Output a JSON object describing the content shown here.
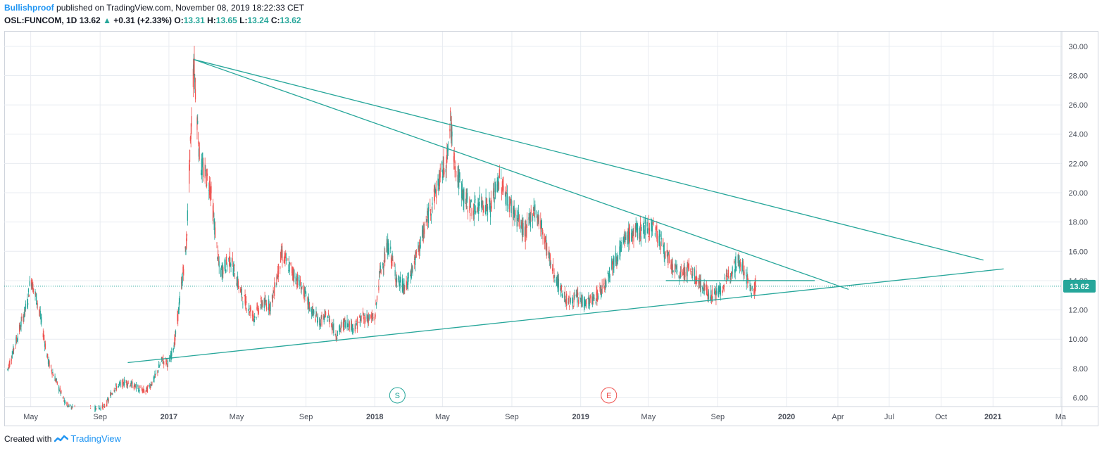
{
  "header": {
    "author": "Bullishproof",
    "published_text": "published on TradingView.com, November 08, 2019 18:22:33 CET",
    "symbol": "OSL:FUNCOM, 1D",
    "last": "13.62",
    "change_arrow": "▲",
    "change": "+0.31 (+2.33%)",
    "o_label": "O:",
    "o_value": "13.31",
    "h_label": "H:",
    "h_value": "13.65",
    "l_label": "L:",
    "l_value": "13.24",
    "c_label": "C:",
    "c_value": "13.62"
  },
  "footer": {
    "created_with": "Created with",
    "brand": "TradingView"
  },
  "colors": {
    "up": "#26a69a",
    "down": "#ef5350",
    "trendline": "#26a69a",
    "grid": "#e8ecf1",
    "price_tag": "#26a69a"
  },
  "chart_data": {
    "type": "candlestick",
    "symbol": "OSL:FUNCOM",
    "interval": "1D",
    "ylim": [
      5.4,
      31.0
    ],
    "y_ticks": [
      "30.00",
      "28.00",
      "26.00",
      "24.00",
      "22.00",
      "20.00",
      "18.00",
      "16.00",
      "14.00",
      "12.00",
      "10.00",
      "8.00",
      "6.00"
    ],
    "x_ticks": [
      "May",
      "Sep",
      "2017",
      "May",
      "Sep",
      "2018",
      "May",
      "Sep",
      "2019",
      "May",
      "Sep",
      "2020",
      "Apr",
      "Jul",
      "Oct",
      "2021",
      "Ma"
    ],
    "current_price": 13.62,
    "current_price_label": "13.62",
    "markers": [
      {
        "label": "S",
        "date": "2018-02-10",
        "color": "#26a69a"
      },
      {
        "label": "E",
        "date": "2019-02-20",
        "color": "#ef5350"
      }
    ],
    "price_path": [
      [
        "2016-03-20",
        7.8
      ],
      [
        "2016-04-10",
        10.5
      ],
      [
        "2016-04-25",
        12.5
      ],
      [
        "2016-05-01",
        14.2
      ],
      [
        "2016-05-15",
        12.2
      ],
      [
        "2016-06-01",
        8.5
      ],
      [
        "2016-07-01",
        5.6
      ],
      [
        "2016-08-01",
        5.0
      ],
      [
        "2016-09-10",
        5.4
      ],
      [
        "2016-09-25",
        6.6
      ],
      [
        "2016-10-15",
        7.1
      ],
      [
        "2016-11-01",
        6.8
      ],
      [
        "2016-11-20",
        6.4
      ],
      [
        "2016-12-05",
        7.2
      ],
      [
        "2016-12-20",
        8.6
      ],
      [
        "2017-01-01",
        8.3
      ],
      [
        "2017-01-12",
        10.0
      ],
      [
        "2017-02-01",
        16.5
      ],
      [
        "2017-02-10",
        25.0
      ],
      [
        "2017-02-14",
        29.0
      ],
      [
        "2017-02-25",
        22.0
      ],
      [
        "2017-03-15",
        20.5
      ],
      [
        "2017-04-01",
        14.5
      ],
      [
        "2017-04-20",
        15.5
      ],
      [
        "2017-05-10",
        13.0
      ],
      [
        "2017-06-01",
        11.5
      ],
      [
        "2017-06-15",
        12.5
      ],
      [
        "2017-07-01",
        12.3
      ],
      [
        "2017-07-20",
        15.8
      ],
      [
        "2017-08-10",
        14.5
      ],
      [
        "2017-08-25",
        13.5
      ],
      [
        "2017-09-10",
        12.0
      ],
      [
        "2017-09-25",
        11.2
      ],
      [
        "2017-10-10",
        11.6
      ],
      [
        "2017-10-25",
        10.3
      ],
      [
        "2017-11-10",
        11.2
      ],
      [
        "2017-11-25",
        10.8
      ],
      [
        "2017-12-10",
        11.5
      ],
      [
        "2018-01-01",
        11.4
      ],
      [
        "2018-01-10",
        14.5
      ],
      [
        "2018-01-25",
        16.4
      ],
      [
        "2018-02-10",
        14.0
      ],
      [
        "2018-02-25",
        13.4
      ],
      [
        "2018-03-10",
        15.0
      ],
      [
        "2018-03-25",
        16.8
      ],
      [
        "2018-04-10",
        19.0
      ],
      [
        "2018-04-25",
        20.8
      ],
      [
        "2018-05-10",
        22.5
      ],
      [
        "2018-05-15",
        24.8
      ],
      [
        "2018-05-25",
        21.5
      ],
      [
        "2018-06-10",
        19.5
      ],
      [
        "2018-06-25",
        18.8
      ],
      [
        "2018-07-10",
        19.4
      ],
      [
        "2018-07-25",
        19.0
      ],
      [
        "2018-08-10",
        21.0
      ],
      [
        "2018-08-25",
        19.5
      ],
      [
        "2018-09-10",
        18.3
      ],
      [
        "2018-09-25",
        17.2
      ],
      [
        "2018-10-10",
        19.0
      ],
      [
        "2018-10-25",
        17.5
      ],
      [
        "2018-11-10",
        15.0
      ],
      [
        "2018-11-25",
        13.5
      ],
      [
        "2018-12-10",
        12.5
      ],
      [
        "2018-12-25",
        12.8
      ],
      [
        "2019-01-10",
        12.5
      ],
      [
        "2019-01-25",
        12.7
      ],
      [
        "2019-02-10",
        13.6
      ],
      [
        "2019-02-25",
        15.0
      ],
      [
        "2019-03-10",
        16.0
      ],
      [
        "2019-03-25",
        17.0
      ],
      [
        "2019-04-10",
        17.3
      ],
      [
        "2019-04-25",
        17.5
      ],
      [
        "2019-05-10",
        17.8
      ],
      [
        "2019-05-25",
        16.5
      ],
      [
        "2019-06-10",
        15.0
      ],
      [
        "2019-06-25",
        14.4
      ],
      [
        "2019-07-10",
        14.8
      ],
      [
        "2019-07-25",
        14.2
      ],
      [
        "2019-08-10",
        13.3
      ],
      [
        "2019-08-25",
        13.0
      ],
      [
        "2019-09-10",
        13.5
      ],
      [
        "2019-09-25",
        14.8
      ],
      [
        "2019-10-10",
        15.4
      ],
      [
        "2019-10-20",
        14.5
      ],
      [
        "2019-10-30",
        13.3
      ],
      [
        "2019-11-08",
        13.62
      ]
    ],
    "trendlines": [
      {
        "from": [
          "2017-02-14",
          29.1
        ],
        "to": [
          "2020-12-15",
          15.4
        ]
      },
      {
        "from": [
          "2017-02-14",
          29.1
        ],
        "to": [
          "2020-04-20",
          13.4
        ]
      },
      {
        "from": [
          "2016-10-20",
          8.4
        ],
        "to": [
          "2021-01-20",
          14.8
        ]
      },
      {
        "from": [
          "2019-06-01",
          14.0
        ],
        "to": [
          "2020-02-20",
          14.0
        ]
      }
    ]
  }
}
